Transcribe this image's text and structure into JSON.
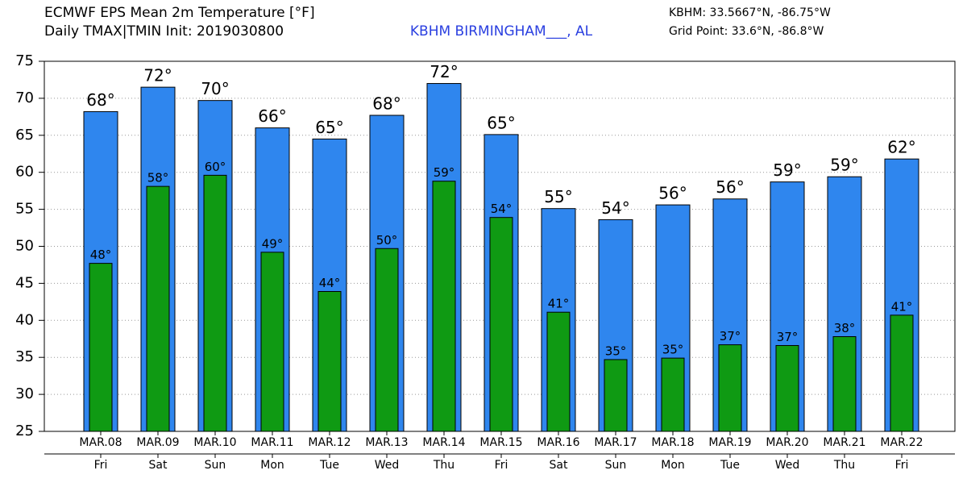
{
  "chart_data": {
    "type": "bar",
    "title": "ECMWF EPS Mean 2m Temperature [°F]",
    "subtitle": "Daily TMAX|TMIN Init: 2019030800",
    "station": "KBHM BIRMINGHAM___, AL",
    "station_coords": "KBHM: 33.5667°N, -86.75°W",
    "grid_point": "Grid Point: 33.6°N, -86.8°W",
    "categories": [
      "MAR.08",
      "MAR.09",
      "MAR.10",
      "MAR.11",
      "MAR.12",
      "MAR.13",
      "MAR.14",
      "MAR.15",
      "MAR.16",
      "MAR.17",
      "MAR.18",
      "MAR.19",
      "MAR.20",
      "MAR.21",
      "MAR.22"
    ],
    "weekdays": [
      "Fri",
      "Sat",
      "Sun",
      "Mon",
      "Tue",
      "Wed",
      "Thu",
      "Fri",
      "Sat",
      "Sun",
      "Mon",
      "Tue",
      "Wed",
      "Thu",
      "Fri"
    ],
    "series": [
      {
        "color": "#2f86ee",
        "values": [
          68.2,
          71.5,
          69.7,
          66.0,
          64.5,
          67.7,
          72.0,
          65.1,
          55.1,
          53.6,
          55.6,
          56.4,
          58.7,
          59.4,
          61.8
        ],
        "value_labels": [
          "68°",
          "72°",
          "70°",
          "66°",
          "65°",
          "68°",
          "72°",
          "65°",
          "55°",
          "54°",
          "56°",
          "56°",
          "59°",
          "59°",
          "62°"
        ]
      },
      {
        "color": "#0f9a13",
        "values": [
          47.7,
          58.1,
          59.6,
          49.2,
          43.9,
          49.7,
          58.8,
          53.9,
          41.1,
          34.7,
          34.9,
          36.7,
          36.6,
          37.8,
          40.7
        ],
        "value_labels": [
          "48°",
          "58°",
          "60°",
          "49°",
          "44°",
          "50°",
          "59°",
          "54°",
          "41°",
          "35°",
          "35°",
          "37°",
          "37°",
          "38°",
          "41°"
        ]
      }
    ],
    "ylim": [
      25,
      75
    ],
    "yticks": [
      25,
      30,
      35,
      40,
      45,
      50,
      55,
      60,
      65,
      70,
      75
    ],
    "grid": true
  }
}
